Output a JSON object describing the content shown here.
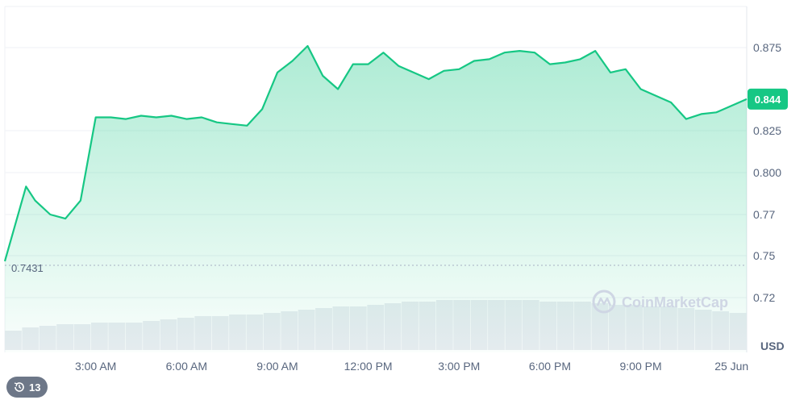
{
  "chart_data": {
    "type": "area",
    "ylim": [
      0.7,
      0.9
    ],
    "yticks": [
      0.72,
      0.75,
      0.77,
      0.8,
      0.825,
      0.875
    ],
    "ytick_labels": [
      "0.72",
      "0.75",
      "0.77",
      "0.800",
      "0.825",
      "0.875"
    ],
    "xticks": [
      "3:00 AM",
      "6:00 AM",
      "9:00 AM",
      "12:00 PM",
      "3:00 PM",
      "6:00 PM",
      "9:00 PM",
      "25 Jun"
    ],
    "unit": "USD",
    "current_price_label": "0.844",
    "current_price": 0.844,
    "baseline_label": "0.7431",
    "baseline": 0.7431,
    "grid": true,
    "color": "#16c784",
    "series": [
      {
        "x": [
          0,
          0.7,
          1,
          1.5,
          2,
          2.5,
          3,
          3.5,
          4,
          4.5,
          5,
          5.5,
          6,
          6.5,
          7,
          7.5,
          8,
          8.5,
          9,
          9.5,
          10,
          10.5,
          11,
          11.5,
          12,
          12.5,
          13,
          13.5,
          14,
          14.5,
          15,
          15.5,
          16,
          16.5,
          17,
          17.5,
          18,
          18.5,
          19,
          19.5,
          20,
          20.5,
          21,
          21.5,
          22,
          22.5,
          23,
          23.5,
          24.5
        ],
        "values": [
          0.746,
          0.79,
          0.78,
          0.77,
          0.768,
          0.78,
          0.833,
          0.833,
          0.832,
          0.834,
          0.833,
          0.834,
          0.832,
          0.833,
          0.83,
          0.829,
          0.828,
          0.838,
          0.86,
          0.867,
          0.876,
          0.858,
          0.85,
          0.865,
          0.865,
          0.872,
          0.864,
          0.86,
          0.856,
          0.861,
          0.862,
          0.867,
          0.868,
          0.872,
          0.873,
          0.872,
          0.865,
          0.866,
          0.868,
          0.873,
          0.86,
          0.862,
          0.85,
          0.846,
          0.842,
          0.832,
          0.835,
          0.836,
          0.844
        ]
      }
    ],
    "volume": [
      0.12,
      0.14,
      0.15,
      0.16,
      0.16,
      0.17,
      0.17,
      0.17,
      0.18,
      0.19,
      0.2,
      0.21,
      0.21,
      0.22,
      0.22,
      0.23,
      0.24,
      0.25,
      0.26,
      0.27,
      0.27,
      0.28,
      0.29,
      0.3,
      0.3,
      0.31,
      0.31,
      0.31,
      0.31,
      0.31,
      0.31,
      0.3,
      0.3,
      0.3,
      0.29,
      0.28,
      0.28,
      0.27,
      0.27,
      0.26,
      0.25,
      0.24,
      0.23
    ]
  },
  "watermark": "CoinMarketCap",
  "history_badge": {
    "count": "13",
    "icon": "history-icon"
  }
}
